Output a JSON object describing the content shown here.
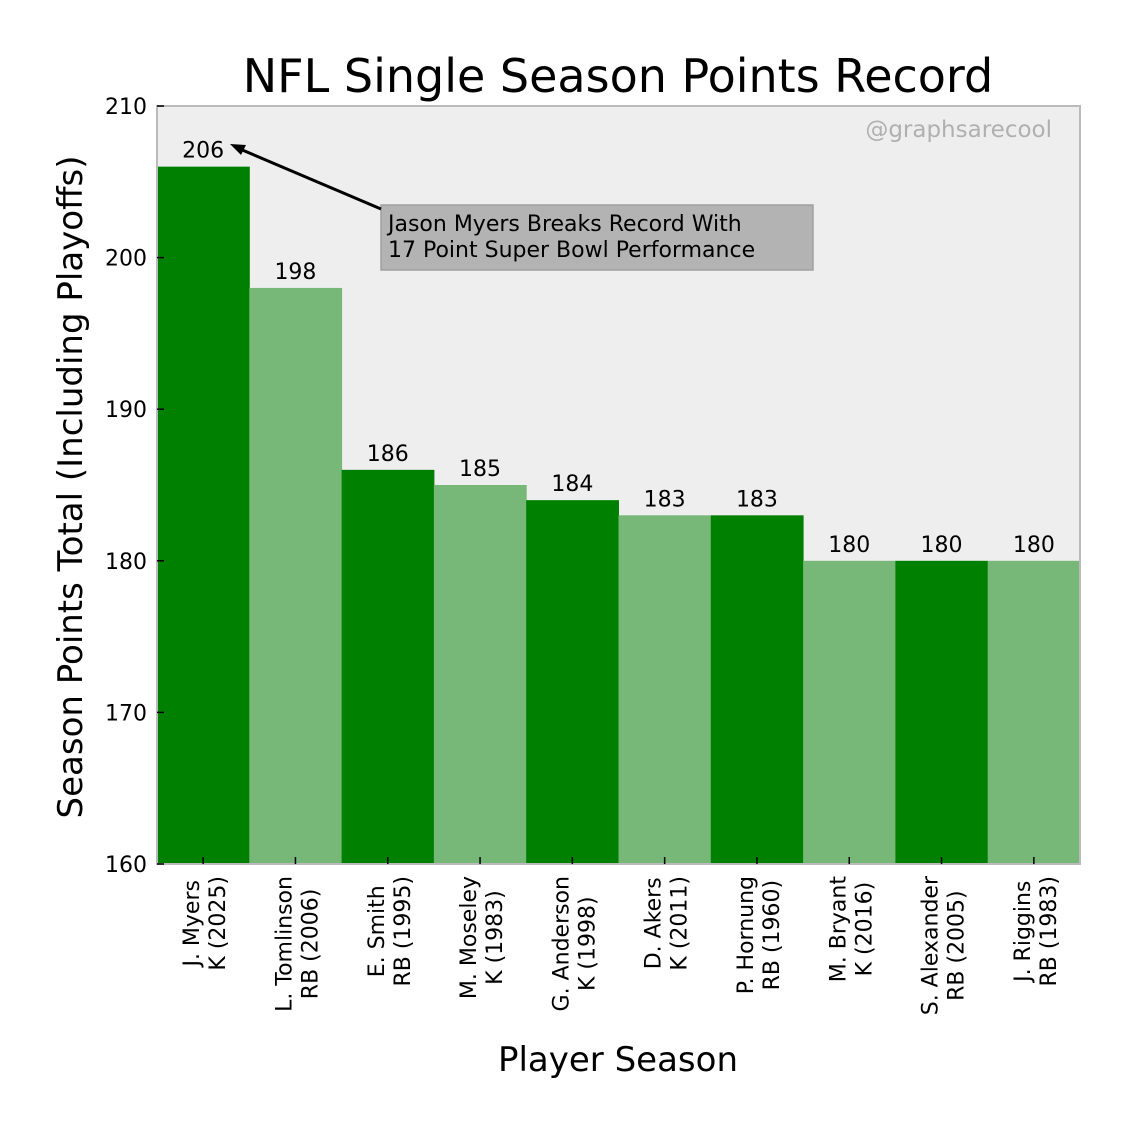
{
  "chart_data": {
    "type": "bar",
    "title": "NFL Single Season Points Record",
    "xlabel": "Player Season",
    "ylabel": "Season Points Total (Including Playoffs)",
    "ylim": [
      160,
      210
    ],
    "yticks": [
      160,
      170,
      180,
      190,
      200,
      210
    ],
    "grid": false,
    "watermark": "@graphsarecool",
    "categories": [
      [
        "J. Myers",
        "K (2025)"
      ],
      [
        "L. Tomlinson",
        "RB (2006)"
      ],
      [
        "E. Smith",
        "RB (1995)"
      ],
      [
        "M. Moseley",
        "K (1983)"
      ],
      [
        "G. Anderson",
        "K (1998)"
      ],
      [
        "D. Akers",
        "K (2011)"
      ],
      [
        "P. Hornung",
        "RB (1960)"
      ],
      [
        "M. Bryant",
        "K (2016)"
      ],
      [
        "S. Alexander",
        "RB (2005)"
      ],
      [
        "J. Riggins",
        "RB (1983)"
      ]
    ],
    "values": [
      206,
      198,
      186,
      185,
      184,
      183,
      183,
      180,
      180,
      180
    ],
    "colors": [
      "#008000",
      "#77b777"
    ],
    "background": "#eeeeee",
    "annotation": {
      "lines": [
        "Jason Myers Breaks Record With",
        "17 Point Super Bowl Performance"
      ],
      "target_index": 0,
      "box_color": "#b3b3b3"
    }
  }
}
